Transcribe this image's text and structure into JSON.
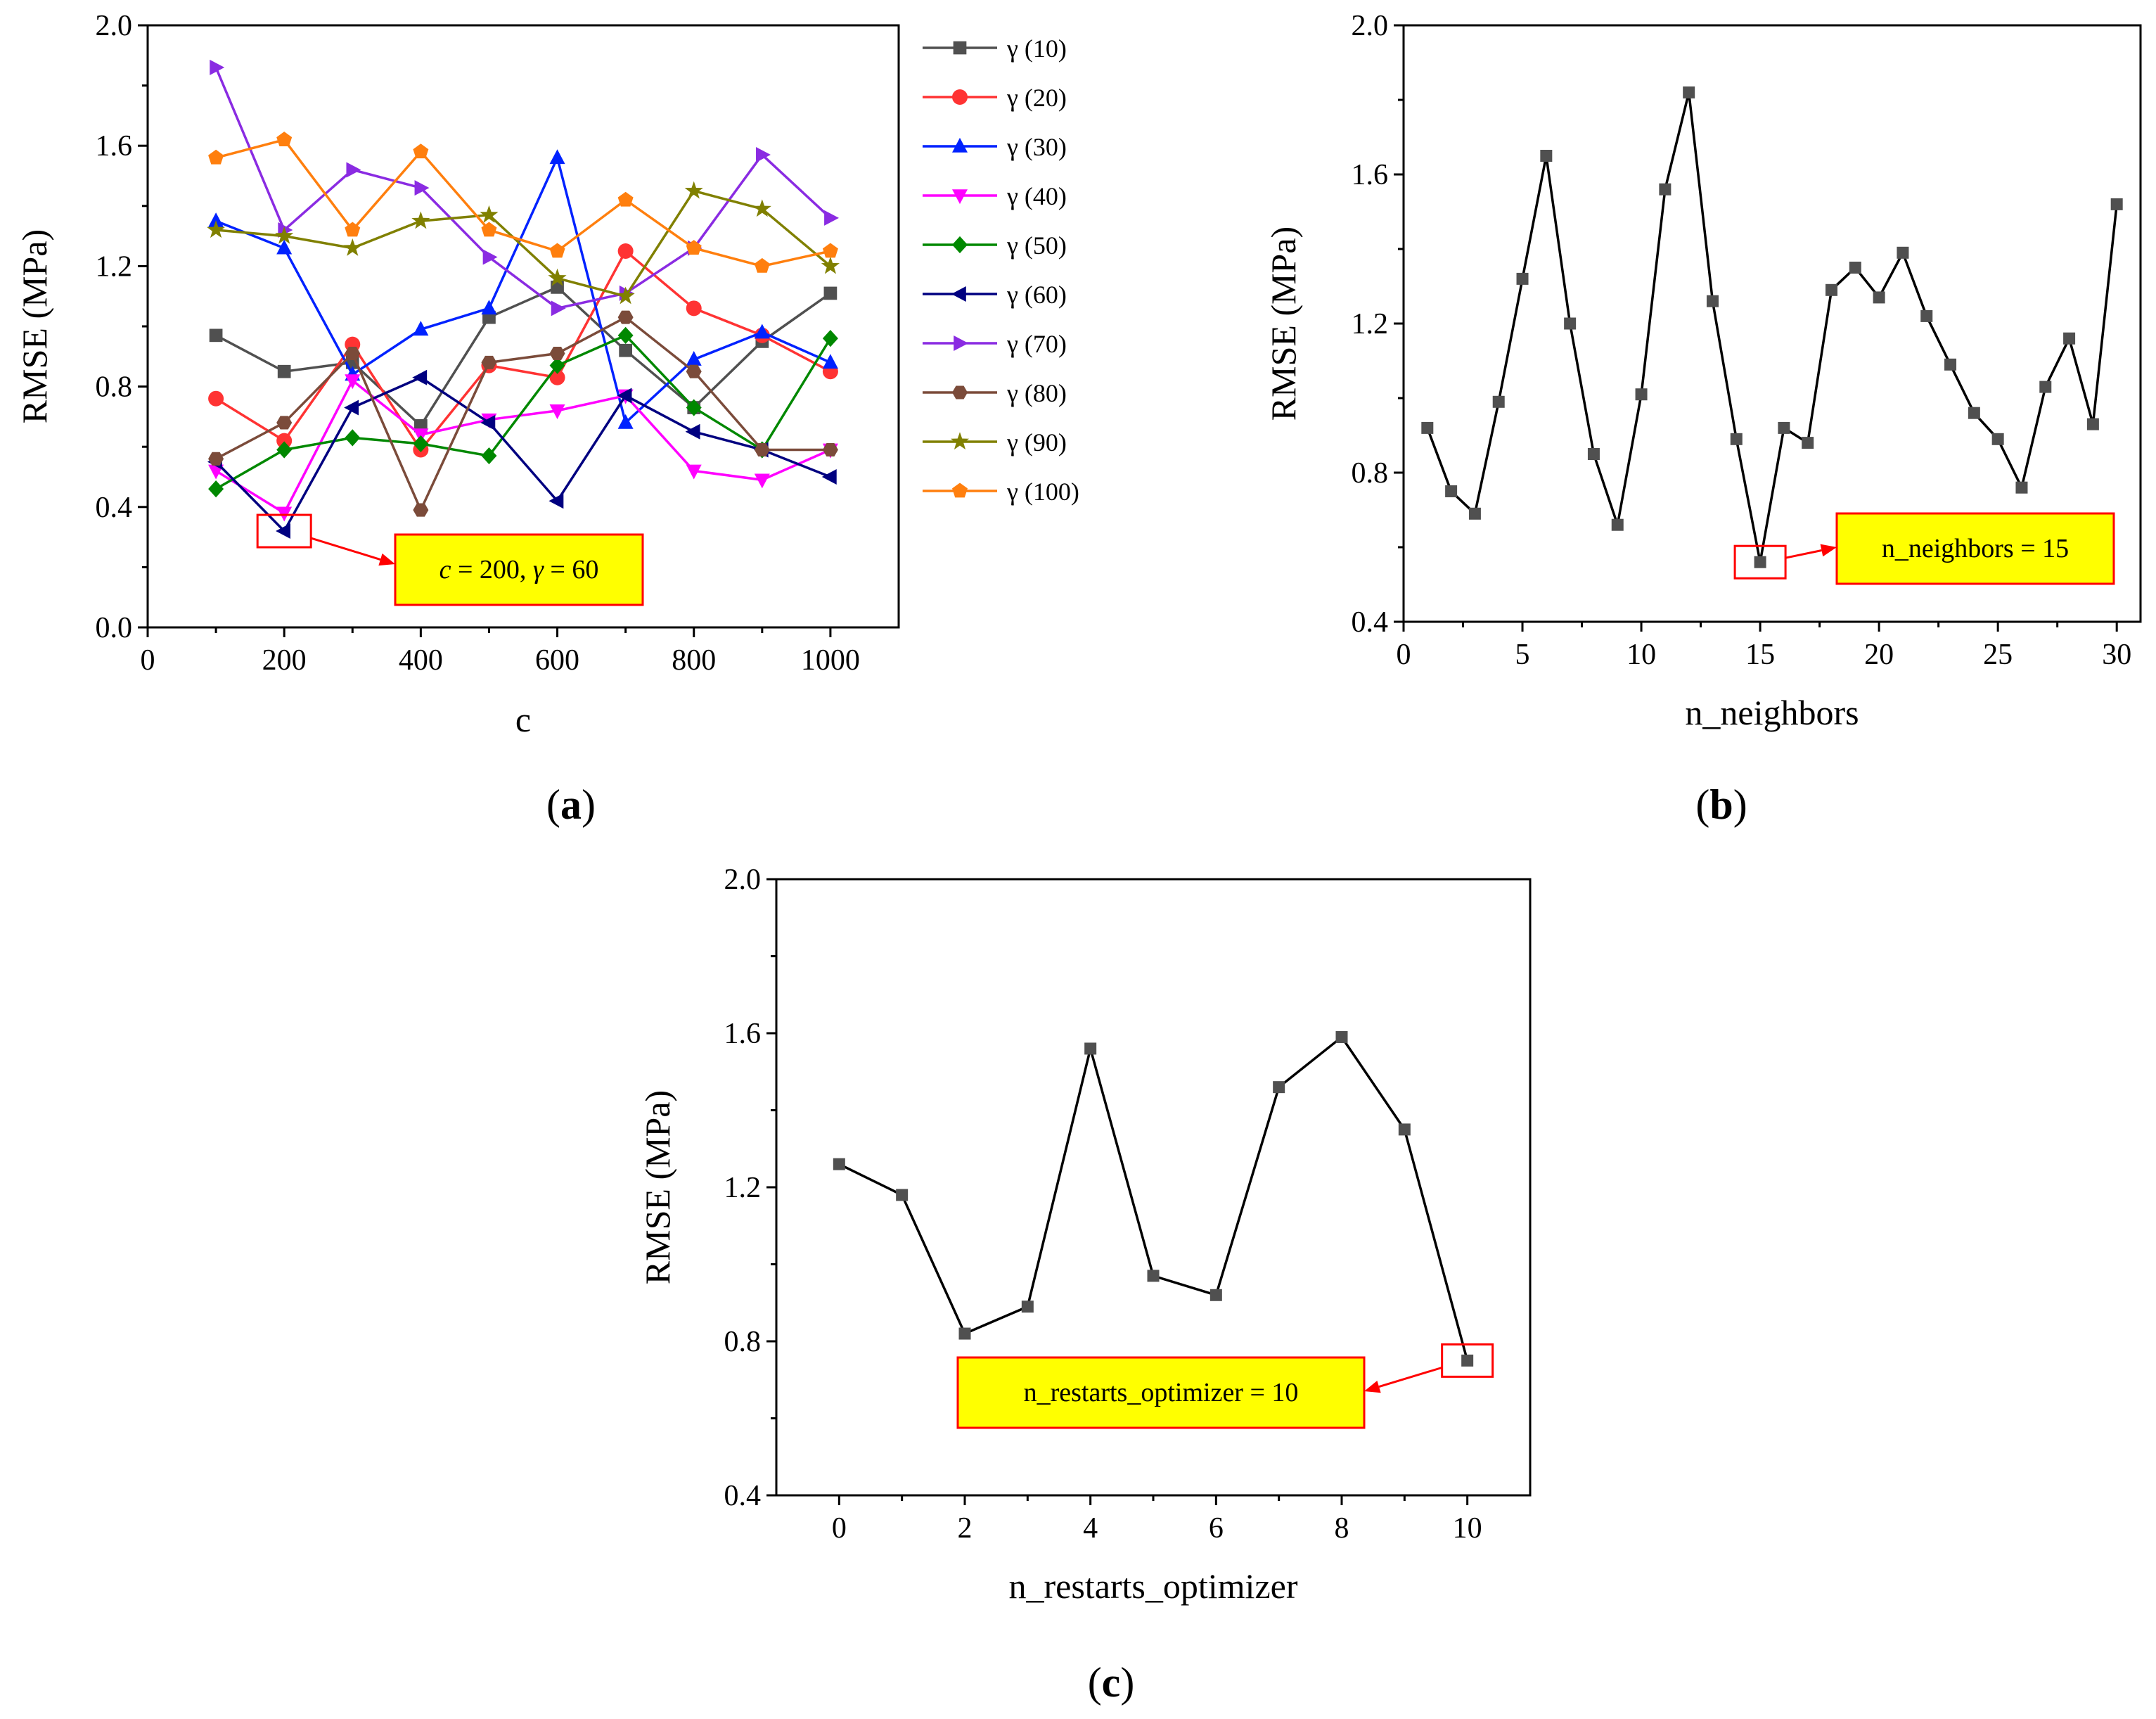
{
  "colors": {
    "annotation_fill": "#ffff00",
    "annotation_border": "#ff0000",
    "line_default": "#000000",
    "marker_default": "#505050"
  },
  "panel_labels": [
    {
      "open": "(",
      "letter": "a",
      "close": ")"
    },
    {
      "open": "(",
      "letter": "b",
      "close": ")"
    },
    {
      "open": "(",
      "letter": "c",
      "close": ")"
    }
  ],
  "chart_data": [
    {
      "id": "a",
      "type": "line",
      "title": "",
      "xlabel": "c",
      "ylabel": "RMSE (MPa)",
      "xlim": [
        0,
        1100
      ],
      "ylim": [
        0.0,
        2.0
      ],
      "xticks": [
        0,
        200,
        400,
        600,
        800,
        1000
      ],
      "yticks": [
        0.0,
        0.4,
        0.8,
        1.2,
        1.6,
        2.0
      ],
      "ytick_labels": [
        "0.0",
        "0.4",
        "0.8",
        "1.2",
        "1.6",
        "2.0"
      ],
      "x": [
        100,
        200,
        300,
        400,
        500,
        600,
        700,
        800,
        900,
        1000
      ],
      "legend_position": "outside-right",
      "series": [
        {
          "name": "γ (10)",
          "color": "#505050",
          "marker": "square",
          "values": [
            0.97,
            0.85,
            0.88,
            0.67,
            1.03,
            1.13,
            0.92,
            0.73,
            0.95,
            1.11
          ]
        },
        {
          "name": "γ (20)",
          "color": "#ff3333",
          "marker": "circle",
          "values": [
            0.76,
            0.62,
            0.94,
            0.59,
            0.87,
            0.83,
            1.25,
            1.06,
            0.97,
            0.85
          ]
        },
        {
          "name": "γ (30)",
          "color": "#0022ff",
          "marker": "triangle-up",
          "values": [
            1.35,
            1.26,
            0.84,
            0.99,
            1.06,
            1.56,
            0.68,
            0.89,
            0.98,
            0.88
          ]
        },
        {
          "name": "γ (40)",
          "color": "#ff00ff",
          "marker": "triangle-down",
          "values": [
            0.52,
            0.38,
            0.82,
            0.64,
            0.69,
            0.72,
            0.77,
            0.52,
            0.49,
            0.59
          ]
        },
        {
          "name": "γ (50)",
          "color": "#008800",
          "marker": "diamond",
          "values": [
            0.46,
            0.59,
            0.63,
            0.61,
            0.57,
            0.87,
            0.97,
            0.73,
            0.59,
            0.96
          ]
        },
        {
          "name": "γ (60)",
          "color": "#000080",
          "marker": "triangle-left",
          "values": [
            0.55,
            0.32,
            0.73,
            0.83,
            0.68,
            0.42,
            0.77,
            0.65,
            0.59,
            0.5
          ]
        },
        {
          "name": "γ (70)",
          "color": "#8a2be2",
          "marker": "triangle-right",
          "values": [
            1.86,
            1.32,
            1.52,
            1.46,
            1.23,
            1.06,
            1.11,
            1.26,
            1.57,
            1.36
          ]
        },
        {
          "name": "γ (80)",
          "color": "#7b4b3a",
          "marker": "hexagon",
          "values": [
            0.56,
            0.68,
            0.91,
            0.39,
            0.88,
            0.91,
            1.03,
            0.85,
            0.59,
            0.59
          ]
        },
        {
          "name": "γ (90)",
          "color": "#808000",
          "marker": "star",
          "values": [
            1.32,
            1.3,
            1.26,
            1.35,
            1.37,
            1.16,
            1.1,
            1.45,
            1.39,
            1.2
          ]
        },
        {
          "name": "γ (100)",
          "color": "#ff7f0e",
          "marker": "pentagon",
          "values": [
            1.56,
            1.62,
            1.32,
            1.58,
            1.32,
            1.25,
            1.42,
            1.26,
            1.2,
            1.25
          ]
        }
      ],
      "highlight": {
        "x": 200,
        "y": 0.32
      },
      "annotation": {
        "italic1": "c",
        "text1": " = 200, ",
        "italic2": "γ",
        "text2": " = 60"
      }
    },
    {
      "id": "b",
      "type": "line",
      "title": "",
      "xlabel": "n_neighbors",
      "ylabel": "RMSE (MPa)",
      "xlim": [
        0,
        31
      ],
      "ylim": [
        0.4,
        2.0
      ],
      "xticks": [
        0,
        5,
        10,
        15,
        20,
        25,
        30
      ],
      "yticks": [
        0.4,
        0.8,
        1.2,
        1.6,
        2.0
      ],
      "ytick_labels": [
        "0.4",
        "0.8",
        "1.2",
        "1.6",
        "2.0"
      ],
      "x": [
        1,
        2,
        3,
        4,
        5,
        6,
        7,
        8,
        9,
        10,
        11,
        12,
        13,
        14,
        15,
        16,
        17,
        18,
        19,
        20,
        21,
        22,
        23,
        24,
        25,
        26,
        27,
        28,
        29,
        30
      ],
      "series": [
        {
          "name": "RMSE",
          "color": "#505050",
          "marker": "square",
          "values": [
            0.92,
            0.75,
            0.69,
            0.99,
            1.32,
            1.65,
            1.2,
            0.85,
            0.66,
            1.01,
            1.56,
            1.82,
            1.26,
            0.89,
            0.56,
            0.92,
            0.88,
            1.29,
            1.35,
            1.27,
            1.39,
            1.22,
            1.09,
            0.96,
            0.89,
            0.76,
            1.03,
            1.16,
            0.93,
            1.52
          ]
        }
      ],
      "highlight": {
        "x": 15,
        "y": 0.56
      },
      "annotation": {
        "text": "n_neighbors = 15"
      }
    },
    {
      "id": "c",
      "type": "line",
      "title": "",
      "xlabel": "n_restarts_optimizer",
      "ylabel": "RMSE (MPa)",
      "xlim": [
        -1,
        11
      ],
      "ylim": [
        0.4,
        2.0
      ],
      "xticks": [
        0,
        2,
        4,
        6,
        8,
        10
      ],
      "yticks": [
        0.4,
        0.8,
        1.2,
        1.6,
        2.0
      ],
      "ytick_labels": [
        "0.4",
        "0.8",
        "1.2",
        "1.6",
        "2.0"
      ],
      "x": [
        0,
        1,
        2,
        3,
        4,
        5,
        6,
        7,
        8,
        9,
        10
      ],
      "series": [
        {
          "name": "RMSE",
          "color": "#505050",
          "marker": "square",
          "values": [
            1.26,
            1.18,
            0.82,
            0.89,
            1.56,
            0.97,
            0.92,
            1.46,
            1.59,
            1.35,
            0.75
          ]
        }
      ],
      "highlight": {
        "x": 10,
        "y": 0.75
      },
      "annotation": {
        "text": "n_restarts_optimizer = 10"
      }
    }
  ]
}
